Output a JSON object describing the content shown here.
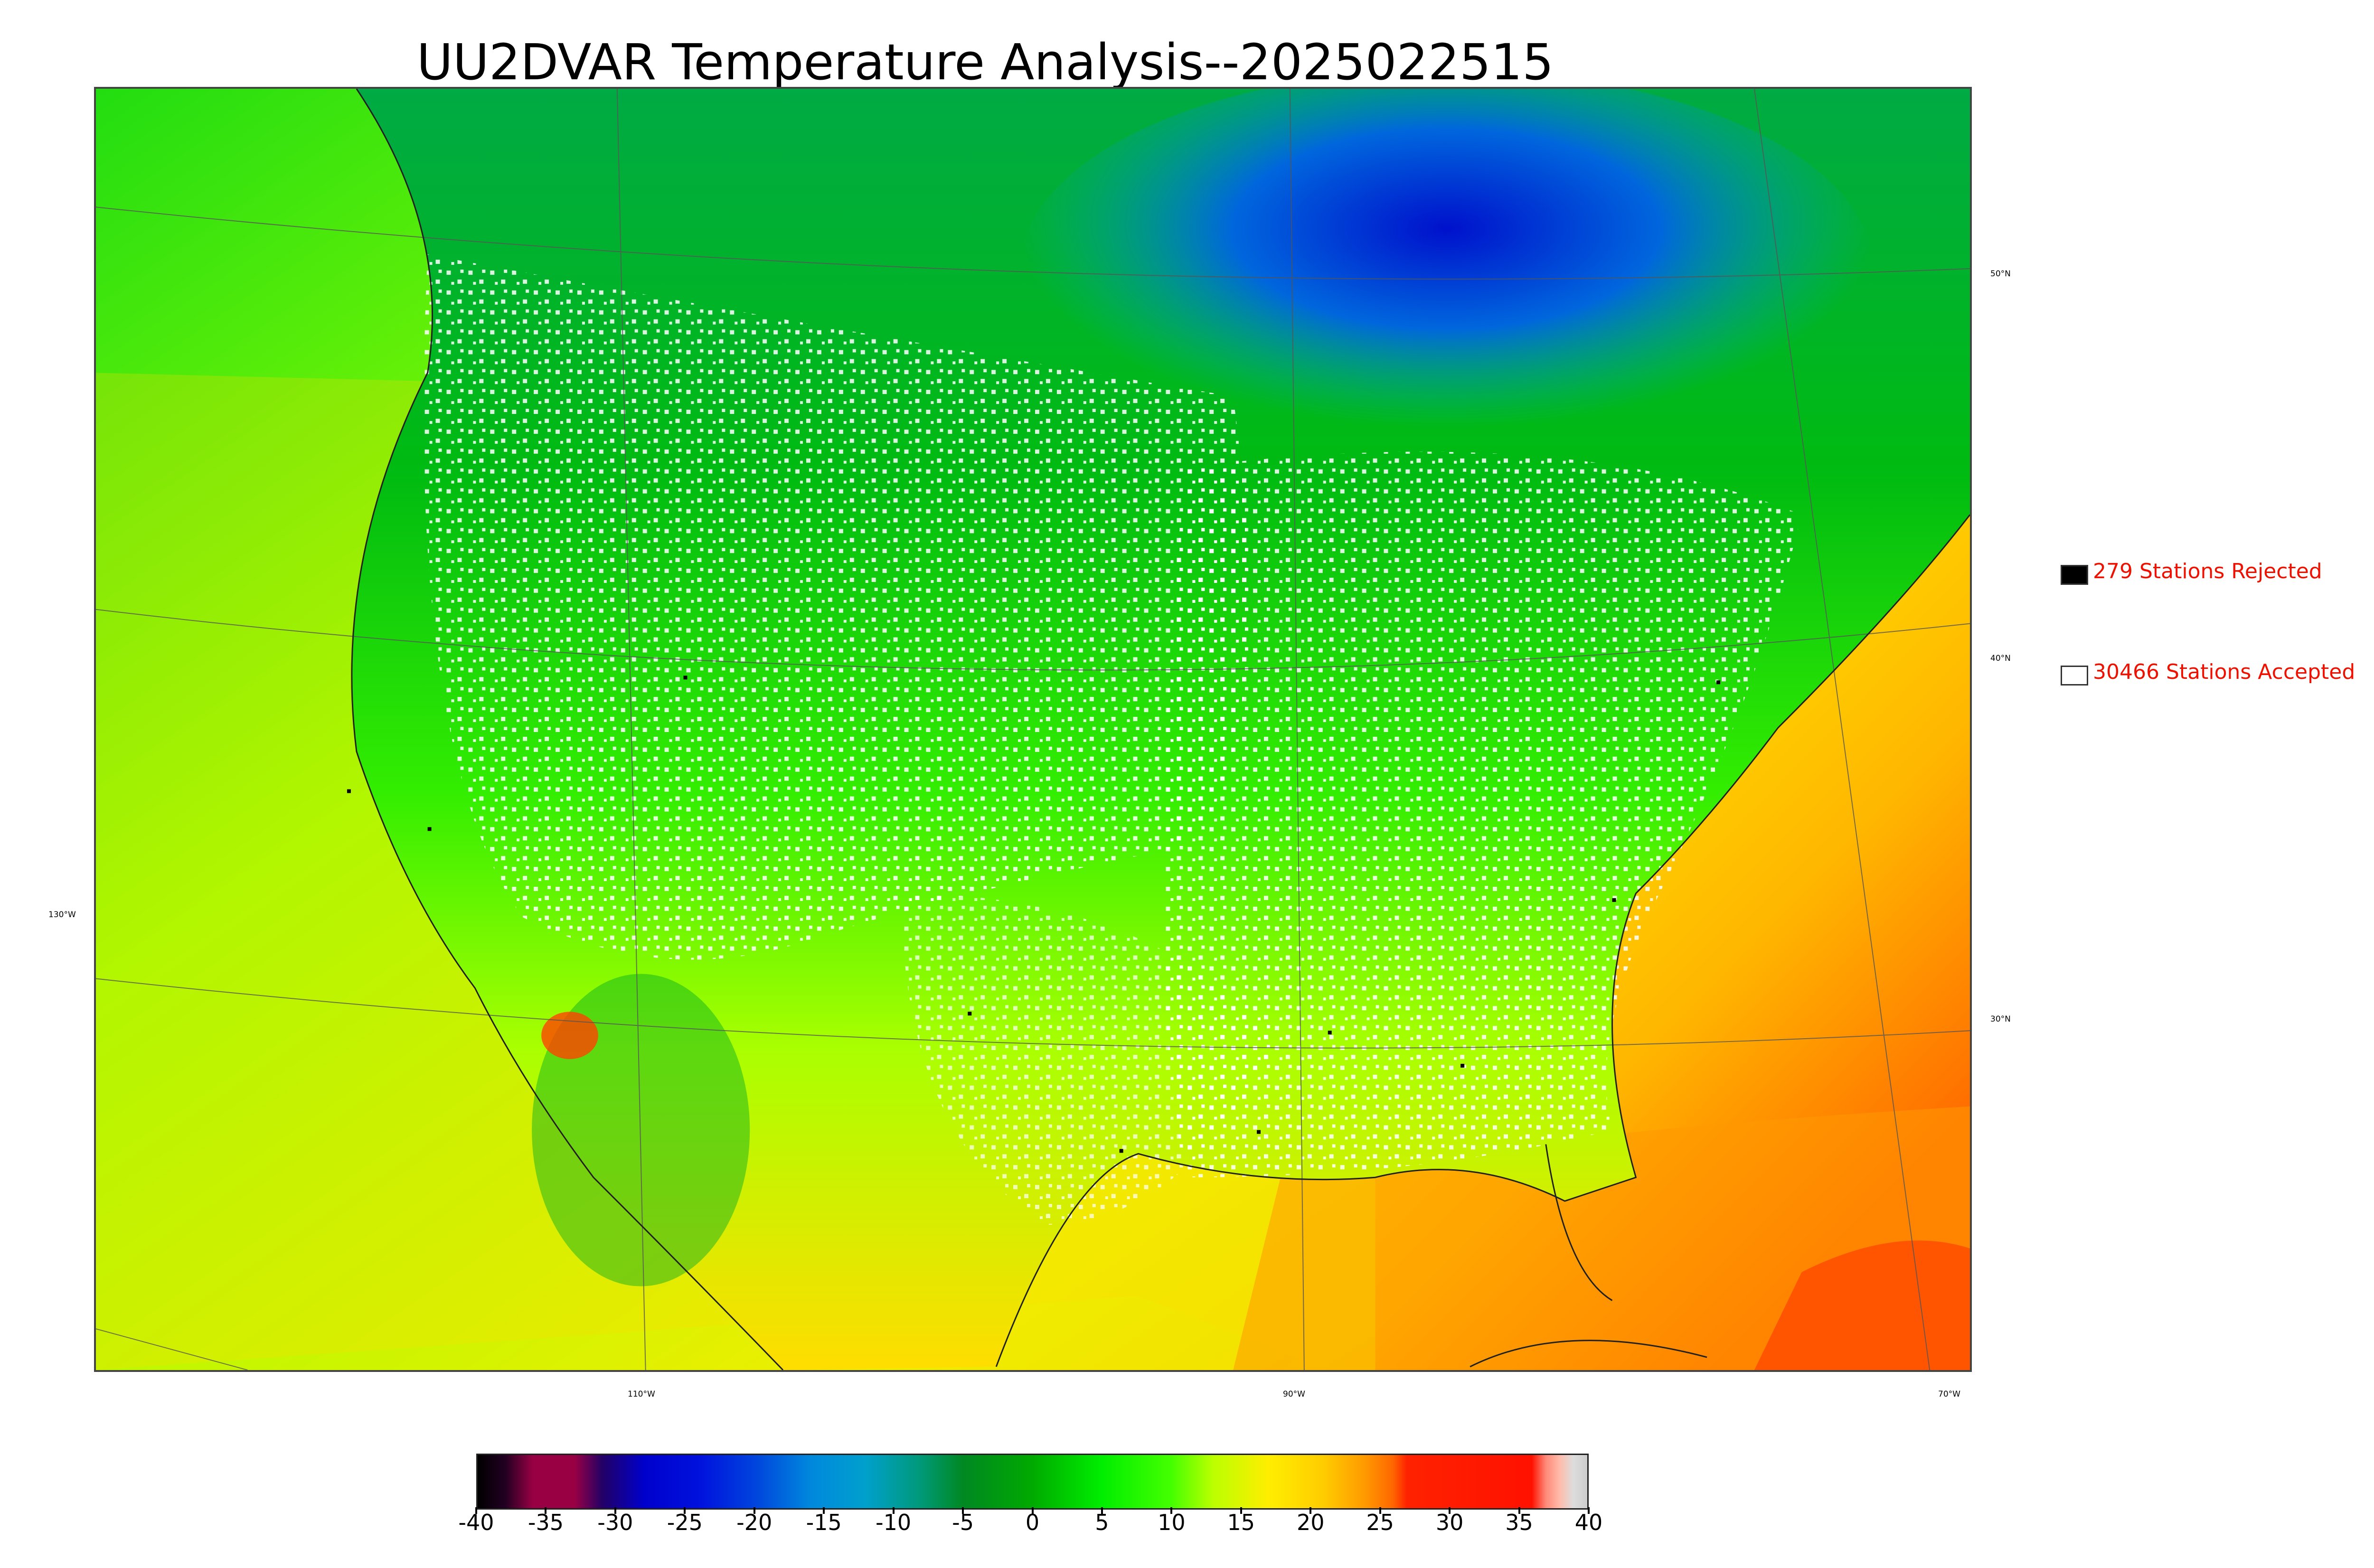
{
  "title": "UU2DVAR Temperature Analysis--2025022515",
  "lat_labels": [
    "50°N",
    "40°N",
    "30°N"
  ],
  "lon_labels": [
    "130°W",
    "110°W",
    "90°W",
    "70°W"
  ],
  "legend": {
    "rejected": {
      "text": "279 Stations Rejected",
      "count": 279,
      "color": "#000000"
    },
    "accepted": {
      "text": "30466 Stations Accepted",
      "count": 30466,
      "color": "#ffffff"
    }
  },
  "colorbar": {
    "min": -40,
    "max": 40,
    "tick_labels": [
      "-40",
      "-35",
      "-30",
      "-25",
      "-20",
      "-15",
      "-10",
      "-5",
      "0",
      "5",
      "10",
      "15",
      "20",
      "25",
      "30",
      "35",
      "40"
    ],
    "stops": [
      {
        "v": -40,
        "c": "#000000"
      },
      {
        "v": -38,
        "c": "#220022"
      },
      {
        "v": -36,
        "c": "#990044"
      },
      {
        "v": -33,
        "c": "#990044"
      },
      {
        "v": -31,
        "c": "#220066"
      },
      {
        "v": -28,
        "c": "#0000cc"
      },
      {
        "v": -24,
        "c": "#0011dd"
      },
      {
        "v": -20,
        "c": "#0044dd"
      },
      {
        "v": -16,
        "c": "#0088dd"
      },
      {
        "v": -12,
        "c": "#00a0cc"
      },
      {
        "v": -8,
        "c": "#009977"
      },
      {
        "v": -5,
        "c": "#008822"
      },
      {
        "v": 0,
        "c": "#00aa00"
      },
      {
        "v": 5,
        "c": "#00ee00"
      },
      {
        "v": 10,
        "c": "#44ff00"
      },
      {
        "v": 13,
        "c": "#bbff00"
      },
      {
        "v": 17,
        "c": "#ffee00"
      },
      {
        "v": 21,
        "c": "#ffcc00"
      },
      {
        "v": 24,
        "c": "#ff9900"
      },
      {
        "v": 26,
        "c": "#ff6600"
      },
      {
        "v": 27,
        "c": "#ff2200"
      },
      {
        "v": 36,
        "c": "#ff1100"
      },
      {
        "v": 37,
        "c": "#ff8877"
      },
      {
        "v": 38,
        "c": "#ffbbaa"
      },
      {
        "v": 39,
        "c": "#dddddd"
      },
      {
        "v": 40,
        "c": "#cccccc"
      }
    ]
  }
}
